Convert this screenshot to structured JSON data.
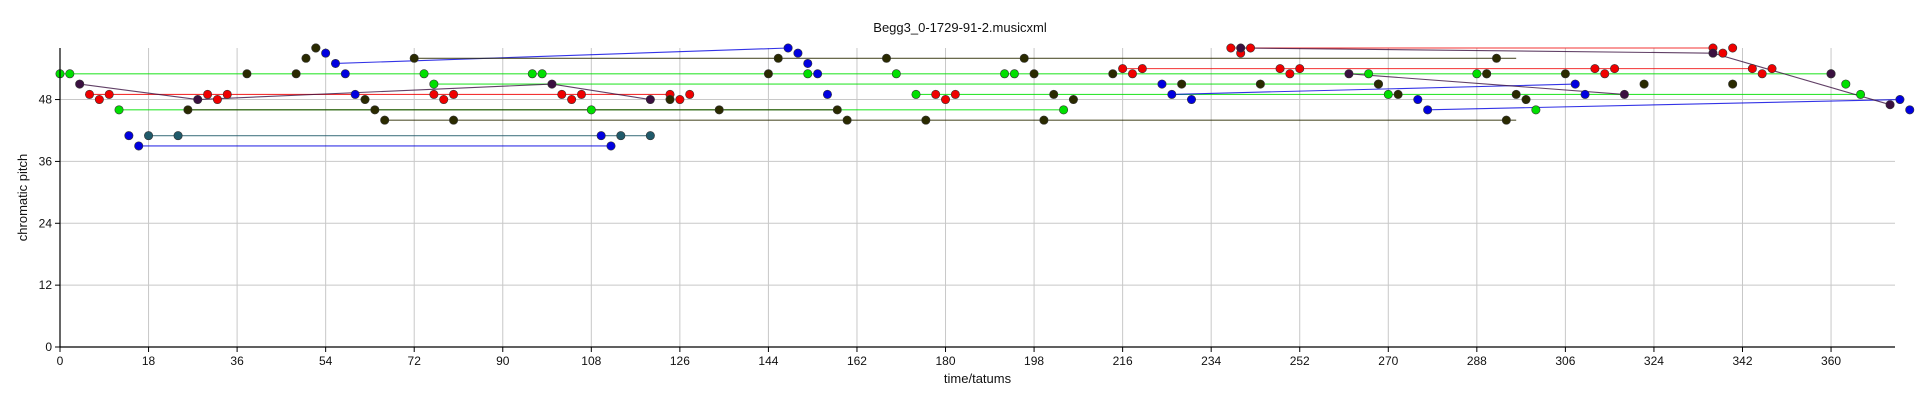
{
  "chart_data": {
    "type": "scatter",
    "title": "Begg3_0-1729-91-2.musicxml",
    "xlabel": "time/tatums",
    "ylabel": "chromatic pitch",
    "xlim": [
      0,
      373
    ],
    "ylim": [
      0,
      58
    ],
    "xticks": [
      0,
      18,
      36,
      54,
      72,
      90,
      108,
      126,
      144,
      162,
      180,
      198,
      216,
      234,
      252,
      270,
      288,
      306,
      324,
      342,
      360
    ],
    "yticks": [
      0,
      12,
      24,
      36,
      48
    ],
    "grid": true,
    "series": [
      {
        "color": "#00e000",
        "points": [
          [
            0,
            53
          ],
          [
            2,
            53
          ],
          [
            12,
            46
          ],
          [
            74,
            53
          ],
          [
            76,
            51
          ],
          [
            96,
            53
          ],
          [
            98,
            53
          ],
          [
            108,
            46
          ],
          [
            152,
            53
          ],
          [
            170,
            53
          ],
          [
            174,
            49
          ],
          [
            192,
            53
          ],
          [
            194,
            53
          ],
          [
            204,
            46
          ],
          [
            266,
            53
          ],
          [
            268,
            51
          ],
          [
            270,
            49
          ],
          [
            288,
            53
          ],
          [
            290,
            53
          ],
          [
            300,
            46
          ],
          [
            360,
            53
          ],
          [
            363,
            51
          ],
          [
            366,
            49
          ]
        ],
        "lines": [
          [
            [
              0,
              53
            ],
            [
              360,
              53
            ]
          ],
          [
            [
              12,
              46
            ],
            [
              204,
              46
            ]
          ],
          [
            [
              76,
              51
            ],
            [
              268,
              51
            ]
          ],
          [
            [
              174,
              49
            ],
            [
              366,
              49
            ]
          ]
        ]
      },
      {
        "color": "#f00000",
        "points": [
          [
            6,
            49
          ],
          [
            8,
            48
          ],
          [
            10,
            49
          ],
          [
            30,
            49
          ],
          [
            32,
            48
          ],
          [
            34,
            49
          ],
          [
            76,
            49
          ],
          [
            78,
            48
          ],
          [
            80,
            49
          ],
          [
            102,
            49
          ],
          [
            104,
            48
          ],
          [
            106,
            49
          ],
          [
            124,
            49
          ],
          [
            126,
            48
          ],
          [
            128,
            49
          ],
          [
            178,
            49
          ],
          [
            180,
            48
          ],
          [
            182,
            49
          ],
          [
            216,
            54
          ],
          [
            218,
            53
          ],
          [
            220,
            54
          ],
          [
            238,
            58
          ],
          [
            240,
            57
          ],
          [
            242,
            58
          ],
          [
            248,
            54
          ],
          [
            250,
            53
          ],
          [
            252,
            54
          ],
          [
            312,
            54
          ],
          [
            314,
            53
          ],
          [
            316,
            54
          ],
          [
            336,
            58
          ],
          [
            338,
            57
          ],
          [
            340,
            58
          ],
          [
            344,
            54
          ],
          [
            346,
            53
          ],
          [
            348,
            54
          ]
        ],
        "lines": [
          [
            [
              6,
              49
            ],
            [
              124,
              49
            ]
          ],
          [
            [
              216,
              54
            ],
            [
              344,
              54
            ]
          ],
          [
            [
              238,
              58
            ],
            [
              336,
              58
            ]
          ]
        ]
      },
      {
        "color": "#0000e0",
        "points": [
          [
            14,
            41
          ],
          [
            16,
            39
          ],
          [
            52,
            58
          ],
          [
            54,
            57
          ],
          [
            56,
            55
          ],
          [
            58,
            53
          ],
          [
            60,
            49
          ],
          [
            110,
            41
          ],
          [
            112,
            39
          ],
          [
            148,
            58
          ],
          [
            150,
            57
          ],
          [
            152,
            55
          ],
          [
            154,
            53
          ],
          [
            156,
            49
          ],
          [
            224,
            51
          ],
          [
            226,
            49
          ],
          [
            230,
            48
          ],
          [
            276,
            48
          ],
          [
            278,
            46
          ],
          [
            308,
            51
          ],
          [
            310,
            49
          ],
          [
            374,
            48
          ],
          [
            376,
            46
          ]
        ],
        "lines": [
          [
            [
              16,
              39
            ],
            [
              112,
              39
            ]
          ],
          [
            [
              56,
              55
            ],
            [
              148,
              58
            ]
          ],
          [
            [
              226,
              49
            ],
            [
              308,
              51
            ]
          ],
          [
            [
              278,
              46
            ],
            [
              374,
              48
            ]
          ]
        ]
      },
      {
        "color": "#2a2a00",
        "points": [
          [
            26,
            46
          ],
          [
            38,
            53
          ],
          [
            48,
            53
          ],
          [
            50,
            56
          ],
          [
            52,
            58
          ],
          [
            62,
            48
          ],
          [
            64,
            46
          ],
          [
            66,
            44
          ],
          [
            72,
            56
          ],
          [
            80,
            44
          ],
          [
            124,
            48
          ],
          [
            134,
            46
          ],
          [
            144,
            53
          ],
          [
            146,
            56
          ],
          [
            158,
            46
          ],
          [
            160,
            44
          ],
          [
            168,
            56
          ],
          [
            176,
            44
          ],
          [
            196,
            56
          ],
          [
            198,
            53
          ],
          [
            200,
            44
          ],
          [
            202,
            49
          ],
          [
            206,
            48
          ],
          [
            214,
            53
          ],
          [
            228,
            51
          ],
          [
            244,
            51
          ],
          [
            268,
            51
          ],
          [
            272,
            49
          ],
          [
            290,
            53
          ],
          [
            292,
            56
          ],
          [
            294,
            44
          ],
          [
            296,
            49
          ],
          [
            298,
            48
          ],
          [
            306,
            53
          ],
          [
            322,
            51
          ],
          [
            340,
            51
          ]
        ],
        "lines": [
          [
            [
              66,
              44
            ],
            [
              296,
              44
            ]
          ],
          [
            [
              26,
              46
            ],
            [
              158,
              46
            ]
          ],
          [
            [
              72,
              56
            ],
            [
              296,
              56
            ]
          ]
        ]
      },
      {
        "color": "#3a1040",
        "points": [
          [
            4,
            51
          ],
          [
            28,
            48
          ],
          [
            100,
            51
          ],
          [
            120,
            48
          ],
          [
            240,
            58
          ],
          [
            262,
            53
          ],
          [
            318,
            49
          ],
          [
            336,
            57
          ],
          [
            360,
            53
          ],
          [
            372,
            47
          ]
        ],
        "lines": [
          [
            [
              4,
              51
            ],
            [
              28,
              48
            ]
          ],
          [
            [
              28,
              48
            ],
            [
              100,
              51
            ]
          ],
          [
            [
              100,
              51
            ],
            [
              120,
              48
            ]
          ],
          [
            [
              240,
              58
            ],
            [
              336,
              57
            ]
          ],
          [
            [
              262,
              53
            ],
            [
              318,
              49
            ]
          ],
          [
            [
              336,
              57
            ],
            [
              372,
              47
            ]
          ]
        ]
      },
      {
        "color": "#205a6a",
        "points": [
          [
            18,
            41
          ],
          [
            24,
            41
          ],
          [
            114,
            41
          ],
          [
            120,
            41
          ]
        ],
        "lines": [
          [
            [
              18,
              41
            ],
            [
              120,
              41
            ]
          ]
        ]
      }
    ]
  }
}
